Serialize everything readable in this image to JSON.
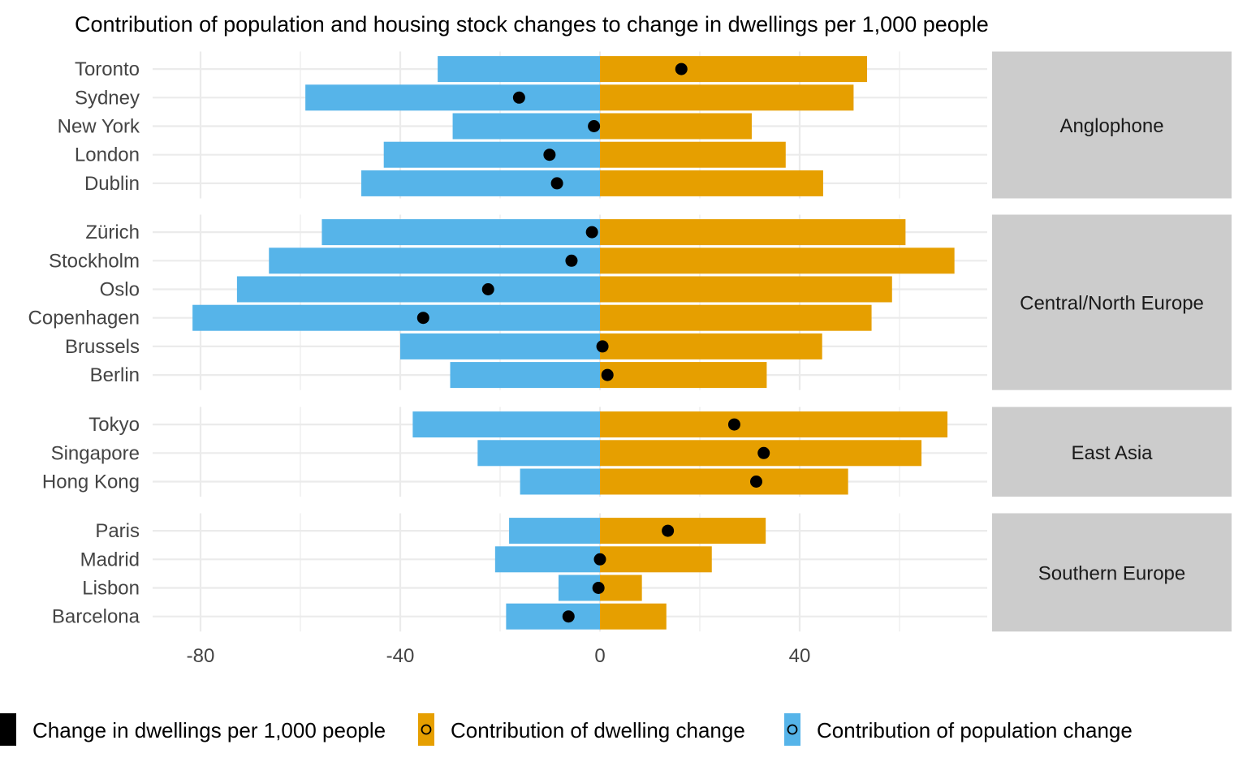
{
  "chart_data": {
    "type": "bar",
    "title": "Contribution of population and housing stock changes to change in dwellings per 1,000 people",
    "xlabel": "",
    "ylabel": "",
    "xlim": [
      -91,
      87
    ],
    "xticks": [
      -80,
      -40,
      0,
      40
    ],
    "xtick_labels": [
      "-80",
      "-40",
      "0",
      "40"
    ],
    "orientation": "horizontal",
    "stacked": "diverging",
    "legend_position": "bottom",
    "colors": {
      "population": "#56B4E9",
      "dwelling": "#E69F00",
      "net": "#000000",
      "facet_strip": "#cccccc",
      "grid": "#ebebeb"
    },
    "legend": [
      {
        "key": "net",
        "label": "Change in dwellings per 1,000 people"
      },
      {
        "key": "dwelling",
        "label": "Contribution of dwelling change"
      },
      {
        "key": "population",
        "label": "Contribution of population change"
      }
    ],
    "facets": [
      {
        "name": "Anglophone",
        "cities": [
          {
            "city": "Toronto",
            "population": -32.5,
            "dwelling": 53.5,
            "net": 16.3
          },
          {
            "city": "Sydney",
            "population": -59.0,
            "dwelling": 50.8,
            "net": -16.2
          },
          {
            "city": "New York",
            "population": -29.5,
            "dwelling": 30.4,
            "net": -1.2
          },
          {
            "city": "London",
            "population": -43.3,
            "dwelling": 37.2,
            "net": -10.1
          },
          {
            "city": "Dublin",
            "population": -47.8,
            "dwelling": 44.7,
            "net": -8.6
          }
        ]
      },
      {
        "name": "Central/North Europe",
        "cities": [
          {
            "city": "Zürich",
            "population": -55.7,
            "dwelling": 61.2,
            "net": -1.6
          },
          {
            "city": "Stockholm",
            "population": -66.3,
            "dwelling": 71.0,
            "net": -5.7
          },
          {
            "city": "Oslo",
            "population": -72.7,
            "dwelling": 58.5,
            "net": -22.4
          },
          {
            "city": "Copenhagen",
            "population": -81.6,
            "dwelling": 54.4,
            "net": -35.4
          },
          {
            "city": "Brussels",
            "population": -40.0,
            "dwelling": 44.5,
            "net": 0.5
          },
          {
            "city": "Berlin",
            "population": -30.0,
            "dwelling": 33.4,
            "net": 1.5
          }
        ]
      },
      {
        "name": "East Asia",
        "cities": [
          {
            "city": "Tokyo",
            "population": -37.5,
            "dwelling": 69.6,
            "net": 26.9
          },
          {
            "city": "Singapore",
            "population": -24.5,
            "dwelling": 64.4,
            "net": 32.8
          },
          {
            "city": "Hong Kong",
            "population": -16.0,
            "dwelling": 49.7,
            "net": 31.3
          }
        ]
      },
      {
        "name": "Southern Europe",
        "cities": [
          {
            "city": "Paris",
            "population": -18.2,
            "dwelling": 33.2,
            "net": 13.6
          },
          {
            "city": "Madrid",
            "population": -21.0,
            "dwelling": 22.4,
            "net": 0.0
          },
          {
            "city": "Lisbon",
            "population": -8.3,
            "dwelling": 8.4,
            "net": -0.3
          },
          {
            "city": "Barcelona",
            "population": -18.8,
            "dwelling": 13.3,
            "net": -6.3
          }
        ]
      }
    ]
  }
}
